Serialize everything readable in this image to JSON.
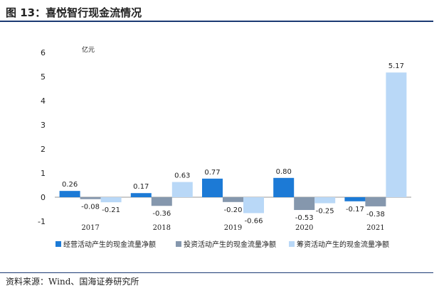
{
  "header": {
    "title": "图 13：喜悦智行现金流情况"
  },
  "footer": {
    "source": "资料来源：Wind、国海证券研究所"
  },
  "colors": {
    "rule": "#1a3a73"
  },
  "chart_data": {
    "type": "bar",
    "title": "",
    "ylabel": "亿元",
    "xlabel": "",
    "ylim": [
      -1,
      6
    ],
    "yticks": [
      -1,
      0,
      1,
      2,
      3,
      4,
      5,
      6
    ],
    "grid": false,
    "legend_position": "bottom",
    "categories": [
      "2017",
      "2018",
      "2019",
      "2020",
      "2021"
    ],
    "series": [
      {
        "name": "经营活动产生的现金流量净额",
        "color": "#1c7ad6",
        "values": [
          0.26,
          0.17,
          0.77,
          0.8,
          -0.17
        ]
      },
      {
        "name": "投资活动产生的现金流量净额",
        "color": "#8597ad",
        "values": [
          -0.08,
          -0.36,
          -0.2,
          -0.53,
          -0.38
        ]
      },
      {
        "name": "筹资活动产生的现金流量净额",
        "color": "#b9d8f7",
        "values": [
          -0.21,
          0.63,
          -0.66,
          -0.25,
          5.17
        ]
      }
    ]
  }
}
